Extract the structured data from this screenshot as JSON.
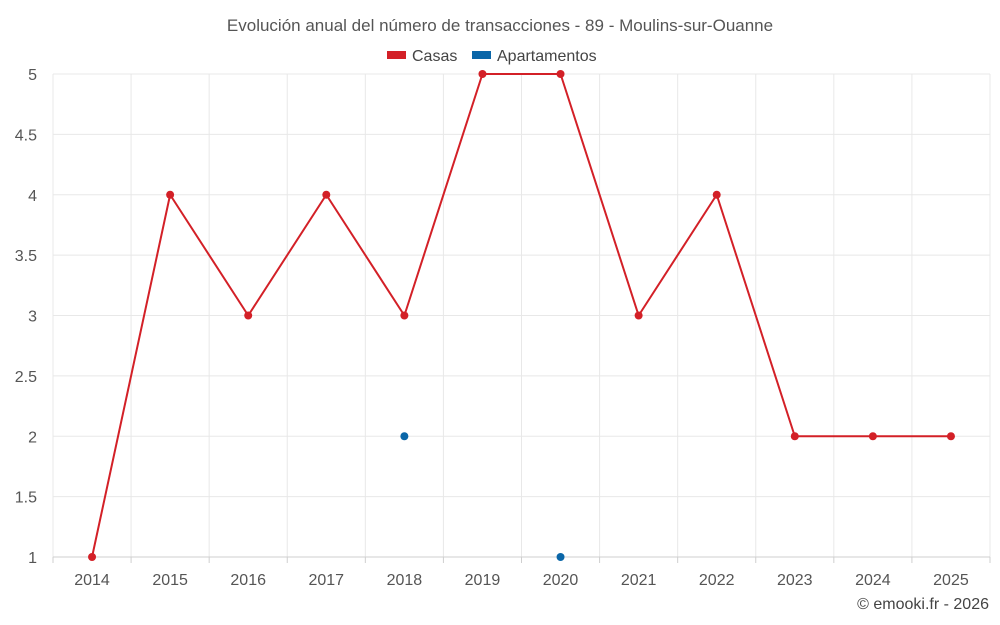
{
  "chart_data": {
    "type": "line",
    "title": "Evolución anual del número de transacciones - 89 - Moulins-sur-Ouanne",
    "categories": [
      "2014",
      "2015",
      "2016",
      "2017",
      "2018",
      "2019",
      "2020",
      "2021",
      "2022",
      "2023",
      "2024",
      "2025"
    ],
    "series": [
      {
        "name": "Casas",
        "color": "#d32027",
        "values": [
          1,
          4,
          3,
          4,
          3,
          5,
          5,
          3,
          4,
          2,
          2,
          2
        ]
      },
      {
        "name": "Apartamentos",
        "color": "#0a66a8",
        "values": [
          null,
          null,
          null,
          null,
          2,
          null,
          1,
          null,
          null,
          null,
          null,
          null
        ]
      }
    ],
    "y_ticks": [
      "1",
      "1.5",
      "2",
      "2.5",
      "3",
      "3.5",
      "4",
      "4.5",
      "5"
    ],
    "ylim": [
      1,
      5
    ],
    "xlabel": "",
    "ylabel": "",
    "grid": true,
    "legend_position": "top-center"
  },
  "credit": "© emooki.fr - 2026"
}
